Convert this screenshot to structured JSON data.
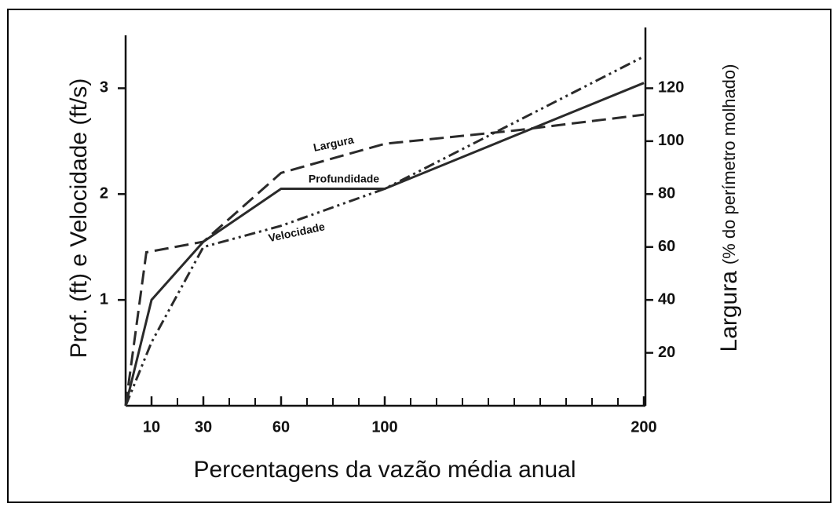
{
  "chart_data": {
    "type": "line",
    "xlabel": "Percentagens da vazão média anual",
    "ylabel": "Prof. (ft)  e  Velocidade (ft/s)",
    "y2label": {
      "main": "Largura",
      "sub": "(% do perímetro molhado)"
    },
    "xlim": [
      0,
      200
    ],
    "xticks": [
      10,
      30,
      60,
      100,
      200
    ],
    "xminorticks": [
      20,
      40,
      50,
      70,
      80,
      90,
      110,
      120,
      130,
      140,
      150,
      160,
      170,
      180,
      190
    ],
    "ylim": [
      0,
      3.5
    ],
    "yticks": [
      1,
      2,
      3
    ],
    "y2lim": [
      0,
      140
    ],
    "y2ticks": [
      20,
      40,
      60,
      80,
      100,
      120
    ],
    "series": [
      {
        "name": "Profundidade",
        "color": "#2a2a2a",
        "style": "solid",
        "x": [
          0,
          10,
          30,
          60,
          100,
          200
        ],
        "values": [
          0,
          1.0,
          1.55,
          2.05,
          2.05,
          3.05
        ]
      },
      {
        "name": "Largura",
        "color": "#2a2a2a",
        "style": "dashed",
        "axis": "y2",
        "x": [
          0,
          8,
          30,
          60,
          100,
          150,
          200
        ],
        "values": [
          0,
          58,
          62,
          88,
          99,
          104,
          110
        ]
      },
      {
        "name": "Velocidade",
        "color": "#2a2a2a",
        "style": "dashdot",
        "x": [
          0,
          10,
          30,
          60,
          100,
          200
        ],
        "values": [
          0,
          0.6,
          1.5,
          1.7,
          2.05,
          3.3
        ]
      }
    ]
  }
}
